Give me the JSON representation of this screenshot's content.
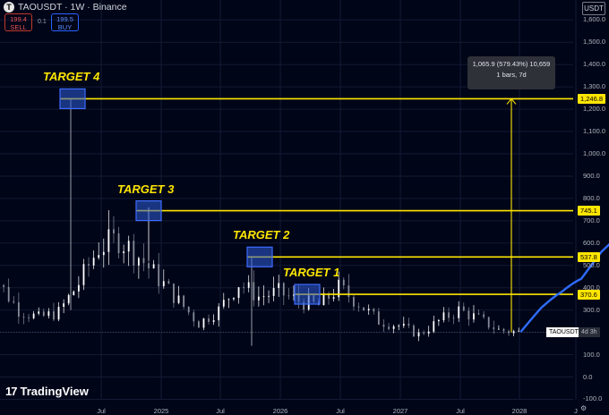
{
  "header": {
    "symbol_logo": "T",
    "title": "TAOUSDT · 1W · Binance",
    "sell_price": "199.4",
    "sell_label": "SELL",
    "spread": "0.1",
    "buy_price": "199.5",
    "buy_label": "BUY",
    "unit": "USDT"
  },
  "chart_data": {
    "type": "candlestick",
    "title": "TAOUSDT · 1W · Binance",
    "xlabel": "",
    "ylabel": "",
    "x_ticks": [
      "Jul",
      "2025",
      "Jul",
      "2026",
      "Jul",
      "2027",
      "Jul",
      "2028",
      "J"
    ],
    "y_ticks": [
      "1,600.0",
      "1,500.0",
      "1,400.0",
      "1,300.0",
      "1,200.0",
      "1,100.0",
      "1,000.0",
      "900.0",
      "800.0",
      "700.0",
      "600.0",
      "500.0",
      "400.0",
      "300.0",
      "200.0",
      "100.0",
      "0.0",
      "-100.0"
    ],
    "ylim": [
      -120,
      1690
    ],
    "colors": {
      "up": "#ffffff",
      "down": "#888c99",
      "target": "#ffe600",
      "projection": "#2f6bff",
      "background": "#000518"
    },
    "price_path": [
      {
        "date": "2024-04",
        "price": 460
      },
      {
        "date": "2024-05",
        "price": 420
      },
      {
        "date": "2024-06",
        "price": 300
      },
      {
        "date": "2024-07",
        "price": 265
      },
      {
        "date": "2024-08",
        "price": 290
      },
      {
        "date": "2024-09",
        "price": 420
      },
      {
        "date": "2024-10",
        "price": 580
      },
      {
        "date": "2024-11",
        "price": 620
      },
      {
        "date": "2024-12",
        "price": 540
      },
      {
        "date": "2025-01",
        "price": 440
      },
      {
        "date": "2025-02",
        "price": 340
      },
      {
        "date": "2025-03",
        "price": 240
      },
      {
        "date": "2025-04",
        "price": 300
      },
      {
        "date": "2025-05",
        "price": 420
      },
      {
        "date": "2025-06",
        "price": 360
      },
      {
        "date": "2025-07",
        "price": 380
      },
      {
        "date": "2025-08",
        "price": 340
      },
      {
        "date": "2025-09",
        "price": 320
      },
      {
        "date": "2025-10",
        "price": 400
      },
      {
        "date": "2025-11",
        "price": 330
      },
      {
        "date": "2025-12",
        "price": 250
      },
      {
        "date": "2026-01",
        "price": 230
      },
      {
        "date": "2026-02",
        "price": 190
      },
      {
        "date": "2026-03",
        "price": 250
      },
      {
        "date": "2026-04",
        "price": 300
      },
      {
        "date": "2026-05",
        "price": 260
      },
      {
        "date": "2026-06",
        "price": 210
      },
      {
        "date": "2026-07",
        "price": 200
      }
    ],
    "targets": [
      {
        "label": "TARGET 1",
        "price": 370.6,
        "tag": "370.6"
      },
      {
        "label": "TARGET 2",
        "price": 537.8,
        "tag": "537.8"
      },
      {
        "label": "TARGET 3",
        "price": 745.1,
        "tag": "745.1"
      },
      {
        "label": "TARGET 4",
        "price": 1246.8,
        "tag": "1,246.8"
      }
    ],
    "projection": [
      {
        "date": "2026-07",
        "price": 205
      },
      {
        "date": "2026-08",
        "price": 310
      },
      {
        "date": "2026-09",
        "price": 380
      },
      {
        "date": "2026-10",
        "price": 440
      },
      {
        "date": "2026-11",
        "price": 560
      },
      {
        "date": "2026-12",
        "price": 640
      },
      {
        "date": "2027-01",
        "price": 700
      },
      {
        "date": "2027-02",
        "price": 760
      },
      {
        "date": "2027-03",
        "price": 900
      },
      {
        "date": "2027-05",
        "price": 1250
      }
    ],
    "current_price_label": "TAOUSDT",
    "countdown": "4d 3h",
    "measure": {
      "line1": "1,065.9 (579.43%) 10,659",
      "line2": "1 bars, 7d"
    }
  },
  "footer": {
    "brand": "TradingView",
    "brand_mark": "17",
    "settings_icon": "gear-icon"
  }
}
